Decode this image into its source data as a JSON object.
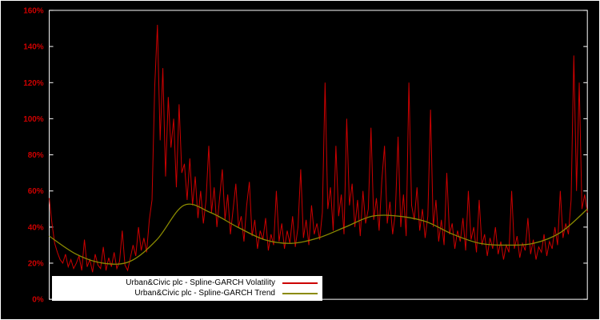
{
  "chart": {
    "background": "#000000",
    "frame_border_color": "#ffffff",
    "axis_box_color": "#ffffff",
    "tick_label_color": "#cc0000",
    "legend_background": "#ffffff",
    "legend_text_color": "#000000"
  },
  "chart_data": {
    "type": "line",
    "title": "",
    "xlabel": "",
    "ylabel": "",
    "ylim": [
      0,
      160
    ],
    "yticks": [
      0,
      20,
      40,
      60,
      80,
      100,
      120,
      140,
      160
    ],
    "ytick_suffix": "%",
    "grid": false,
    "legend_position": "bottom-left",
    "series": [
      {
        "name": "Urban&Civic plc - Spline-GARCH Volatility",
        "color": "#cc0000",
        "smooth": false,
        "values": [
          56,
          42,
          31,
          26,
          22,
          20,
          25,
          18,
          22,
          17,
          20,
          24,
          16,
          33,
          18,
          22,
          15,
          25,
          19,
          17,
          29,
          16,
          23,
          18,
          26,
          17,
          21,
          38,
          19,
          16,
          23,
          30,
          24,
          40,
          27,
          34,
          26,
          44,
          55,
          118,
          152,
          88,
          128,
          68,
          112,
          84,
          100,
          62,
          108,
          70,
          75,
          55,
          78,
          52,
          68,
          45,
          60,
          42,
          55,
          85,
          48,
          62,
          40,
          56,
          72,
          44,
          58,
          36,
          50,
          64,
          40,
          46,
          32,
          52,
          65,
          35,
          44,
          28,
          38,
          33,
          45,
          27,
          36,
          30,
          60,
          32,
          42,
          28,
          38,
          31,
          46,
          29,
          40,
          72,
          34,
          44,
          30,
          52,
          36,
          42,
          33,
          48,
          120,
          50,
          62,
          38,
          85,
          46,
          58,
          36,
          100,
          52,
          64,
          40,
          55,
          35,
          60,
          42,
          50,
          95,
          44,
          56,
          38,
          66,
          85,
          42,
          54,
          36,
          48,
          90,
          40,
          58,
          35,
          120,
          52,
          44,
          62,
          38,
          50,
          34,
          46,
          105,
          40,
          55,
          32,
          44,
          30,
          70,
          36,
          42,
          28,
          38,
          32,
          45,
          27,
          60,
          33,
          40,
          26,
          55,
          30,
          36,
          24,
          34,
          28,
          40,
          25,
          32,
          22,
          30,
          26,
          60,
          28,
          35,
          23,
          31,
          27,
          45,
          25,
          33,
          22,
          29,
          26,
          36,
          24,
          32,
          28,
          40,
          30,
          60,
          34,
          42,
          36,
          55,
          135,
          60,
          120,
          50,
          58,
          48
        ]
      },
      {
        "name": "Urban&Civic plc - Spline-GARCH Trend",
        "color": "#8b8b00",
        "smooth": true,
        "values": [
          35,
          25,
          20,
          21,
          33,
          52,
          48,
          40,
          33,
          31,
          34,
          40,
          46,
          46,
          43,
          36,
          31,
          30,
          31,
          37,
          50
        ]
      }
    ]
  }
}
